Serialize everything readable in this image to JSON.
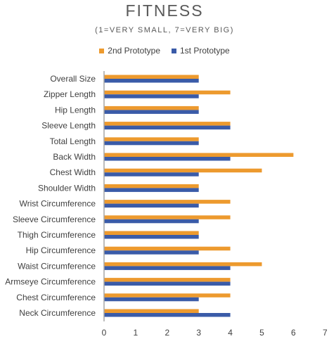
{
  "chart_data": {
    "type": "bar",
    "orientation": "horizontal",
    "title": "FITNESS",
    "subtitle": "(1=VERY SMALL, 7=VERY BIG)",
    "categories": [
      "Overall Size",
      "Zipper Length",
      "Hip Length",
      "Sleeve Length",
      "Total Length",
      "Back Width",
      "Chest Width",
      "Shoulder Width",
      "Wrist Circumference",
      "Sleeve Circumference",
      "Thigh Circumference",
      "Hip Circumference",
      "Waist Circumference",
      "Armseye Circumference",
      "Chest Circumference",
      "Neck Circumference"
    ],
    "series": [
      {
        "name": "2nd Prototype",
        "color": "#ED9A2E",
        "values": [
          3,
          4,
          3,
          4,
          3,
          6,
          5,
          3,
          4,
          4,
          3,
          4,
          5,
          4,
          4,
          3
        ]
      },
      {
        "name": "1st Prototype",
        "color": "#3A5BA8",
        "values": [
          3,
          3,
          3,
          4,
          3,
          4,
          3,
          3,
          3,
          3,
          3,
          3,
          4,
          4,
          3,
          4
        ]
      }
    ],
    "xlim": [
      0,
      7
    ],
    "xticks": [
      "0",
      "1",
      "2",
      "3",
      "4",
      "5",
      "6",
      "7"
    ],
    "grid": false,
    "legend_position": "top"
  }
}
